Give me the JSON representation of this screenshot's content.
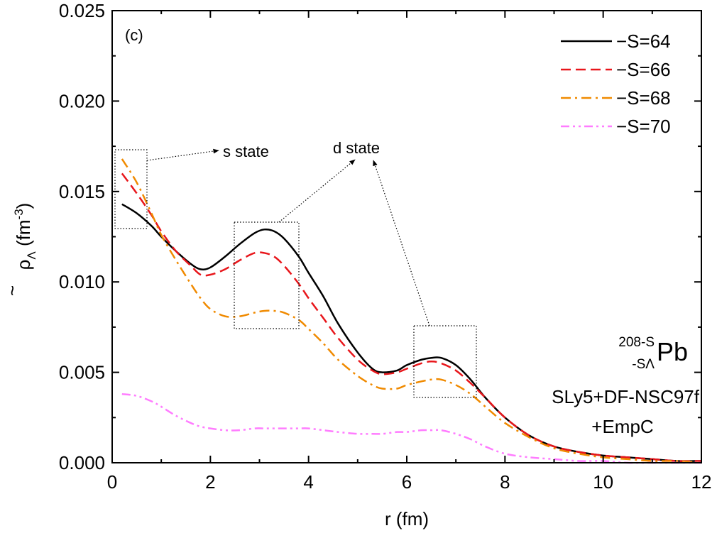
{
  "chart_data": {
    "type": "line",
    "panel_label": "(c)",
    "xlabel": "r (fm)",
    "ylabel": {
      "base": "ρ",
      "tilde": "~",
      "subscript": "Λ",
      "unit_open": " (fm",
      "unit_exp": "-3",
      "unit_close": ")"
    },
    "xlim": [
      0,
      12
    ],
    "ylim": [
      0,
      0.025
    ],
    "x_ticks": [
      "0",
      "2",
      "4",
      "6",
      "8",
      "10",
      "12"
    ],
    "y_ticks": [
      "0.000",
      "0.005",
      "0.010",
      "0.015",
      "0.020",
      "0.025"
    ],
    "grid": false,
    "legend_position": "top-right",
    "series": [
      {
        "name": "−S=64",
        "color": "#000000",
        "dash": "solid",
        "x": [
          0.2,
          0.5,
          0.8,
          1.0,
          1.3,
          1.6,
          1.8,
          2.0,
          2.3,
          2.6,
          2.9,
          3.1,
          3.3,
          3.5,
          3.8,
          4.0,
          4.3,
          4.6,
          5.0,
          5.3,
          5.5,
          5.8,
          6.0,
          6.3,
          6.5,
          6.7,
          7.0,
          7.3,
          7.6,
          8.0,
          8.5,
          9.0,
          9.5,
          10.0,
          10.5,
          11.0,
          11.5,
          12.0
        ],
        "y": [
          0.0143,
          0.0138,
          0.0131,
          0.0125,
          0.0117,
          0.011,
          0.0107,
          0.0108,
          0.0114,
          0.0121,
          0.0127,
          0.0129,
          0.0128,
          0.0124,
          0.0114,
          0.0105,
          0.0092,
          0.0077,
          0.0061,
          0.0052,
          0.005,
          0.0051,
          0.0054,
          0.0057,
          0.0058,
          0.0058,
          0.0054,
          0.0046,
          0.0036,
          0.0025,
          0.0015,
          0.0009,
          0.0006,
          0.0004,
          0.0003,
          0.0002,
          0.0001,
          0.0001
        ]
      },
      {
        "name": "−S=66",
        "color": "#e8161b",
        "dash": "dashed",
        "x": [
          0.2,
          0.5,
          0.8,
          1.0,
          1.3,
          1.6,
          1.8,
          2.0,
          2.3,
          2.6,
          2.9,
          3.1,
          3.3,
          3.5,
          3.8,
          4.0,
          4.3,
          4.6,
          5.0,
          5.3,
          5.5,
          5.8,
          6.0,
          6.3,
          6.5,
          6.7,
          7.0,
          7.3,
          7.6,
          8.0,
          8.5,
          9.0,
          9.5,
          10.0,
          10.5,
          11.0,
          11.5,
          12.0
        ],
        "y": [
          0.016,
          0.0149,
          0.0137,
          0.0128,
          0.0117,
          0.0109,
          0.0104,
          0.0104,
          0.0107,
          0.0112,
          0.0116,
          0.0116,
          0.0114,
          0.0109,
          0.0099,
          0.0091,
          0.008,
          0.0069,
          0.0057,
          0.0051,
          0.0049,
          0.005,
          0.0052,
          0.0055,
          0.0056,
          0.0055,
          0.0051,
          0.0044,
          0.0036,
          0.0025,
          0.0015,
          0.0009,
          0.0006,
          0.0004,
          0.0003,
          0.0002,
          0.0001,
          0.0001
        ]
      },
      {
        "name": "−S=68",
        "color": "#f08a00",
        "dash": "dashdot",
        "x": [
          0.2,
          0.5,
          0.8,
          1.0,
          1.3,
          1.6,
          1.8,
          2.0,
          2.3,
          2.6,
          2.9,
          3.1,
          3.3,
          3.5,
          3.8,
          4.0,
          4.3,
          4.6,
          5.0,
          5.3,
          5.5,
          5.8,
          6.0,
          6.3,
          6.5,
          6.7,
          7.0,
          7.3,
          7.6,
          8.0,
          8.5,
          9.0,
          9.5,
          10.0,
          10.5,
          11.0,
          11.5,
          12.0
        ],
        "y": [
          0.0168,
          0.0155,
          0.0138,
          0.0126,
          0.0112,
          0.0099,
          0.0091,
          0.0085,
          0.0081,
          0.0081,
          0.0083,
          0.0084,
          0.0084,
          0.0083,
          0.0079,
          0.0074,
          0.0066,
          0.0057,
          0.0048,
          0.0043,
          0.0041,
          0.0041,
          0.0043,
          0.0045,
          0.0046,
          0.0046,
          0.0043,
          0.0038,
          0.0031,
          0.0022,
          0.0014,
          0.0008,
          0.0005,
          0.0003,
          0.0002,
          0.0001,
          0.0001,
          0.0
        ]
      },
      {
        "name": "−S=70",
        "color": "#ff7cff",
        "dash": "dashdotdot",
        "x": [
          0.2,
          0.5,
          0.8,
          1.0,
          1.3,
          1.6,
          1.8,
          2.0,
          2.3,
          2.6,
          2.9,
          3.1,
          3.3,
          3.5,
          3.8,
          4.0,
          4.3,
          4.6,
          5.0,
          5.3,
          5.5,
          5.8,
          6.0,
          6.3,
          6.5,
          6.7,
          7.0,
          7.3,
          7.6,
          8.0,
          8.5,
          9.0,
          9.5,
          10.0,
          10.5,
          11.0,
          11.5,
          12.0
        ],
        "y": [
          0.0038,
          0.0037,
          0.0034,
          0.0031,
          0.0026,
          0.0022,
          0.002,
          0.0019,
          0.0018,
          0.0018,
          0.0019,
          0.0019,
          0.0019,
          0.0019,
          0.0019,
          0.0019,
          0.0018,
          0.0017,
          0.0016,
          0.0016,
          0.0016,
          0.0017,
          0.0017,
          0.0018,
          0.0018,
          0.0018,
          0.0016,
          0.0013,
          0.0009,
          0.0005,
          0.0003,
          0.0002,
          0.0001,
          0.0001,
          0.0,
          0.0,
          0.0,
          0.0
        ]
      }
    ],
    "annotations": {
      "s_state": "s state",
      "d_state": "d state",
      "nucleus": {
        "mass_label": "208-S",
        "sub_label": "-SΛ",
        "element": "Pb"
      },
      "model_line1": "SLy5+DF-NSC97f",
      "model_line2": "+EmpC"
    }
  }
}
